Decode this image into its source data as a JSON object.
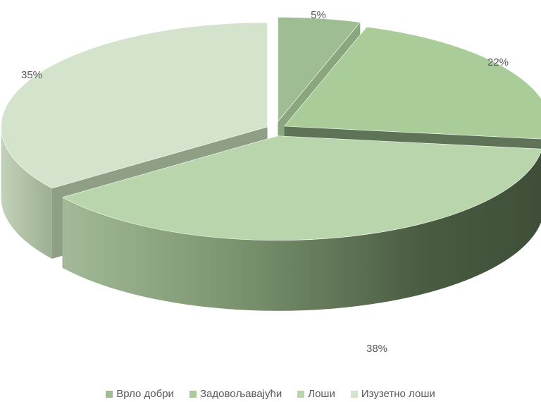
{
  "chart_data": {
    "type": "pie",
    "style": "3d-exploded",
    "categories": [
      "Врло добри",
      "Задовољавајући",
      "Лоши",
      "Изузетно лоши"
    ],
    "values": [
      5,
      22,
      38,
      35
    ],
    "labels": [
      "5%",
      "22%",
      "38%",
      "35%"
    ],
    "colors": [
      "#9fbd93",
      "#a9cc99",
      "#b8d5ab",
      "#d4e3cc"
    ],
    "side_colors": [
      "#7a9a70",
      "#556b4c",
      "#4f6447",
      "#b4c6ab"
    ],
    "legend_position": "bottom",
    "title": ""
  }
}
